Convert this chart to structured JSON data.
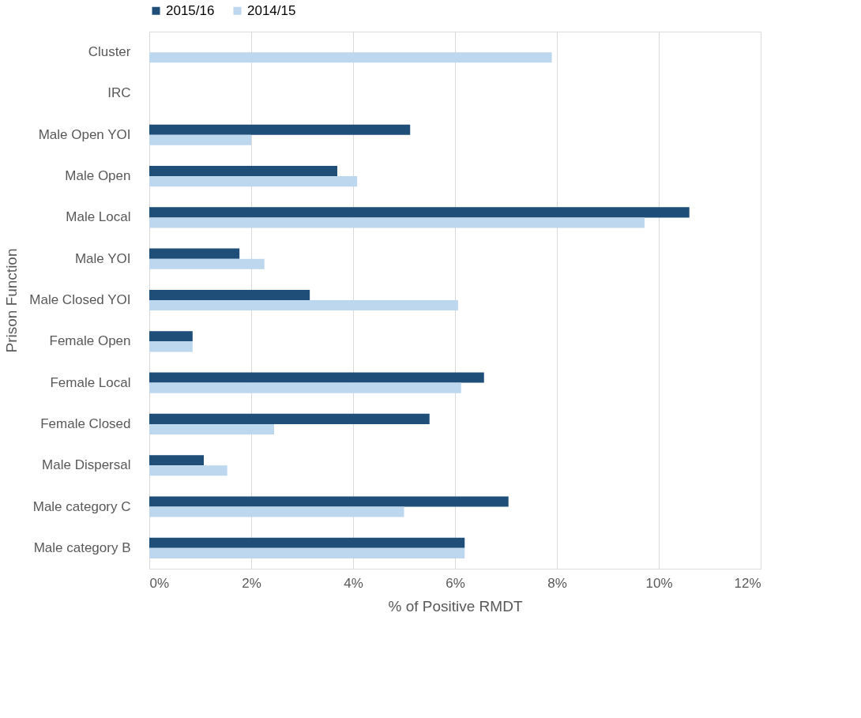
{
  "chart_data": {
    "type": "bar",
    "orientation": "horizontal",
    "xlabel": "% of Positive RMDT",
    "ylabel": "Prison Function",
    "categories": [
      "Cluster",
      "IRC",
      "Male Open YOI",
      "Male Open",
      "Male Local",
      "Male YOI",
      "Male Closed YOI",
      "Female Open",
      "Female Local",
      "Female Closed",
      "Male Dispersal",
      "Male category C",
      "Male category B"
    ],
    "series": [
      {
        "name": "2015/16",
        "color": "#1f4e79",
        "values": [
          null,
          null,
          5.12,
          3.69,
          10.6,
          1.77,
          3.15,
          0.85,
          6.57,
          5.5,
          1.07,
          7.05,
          6.19
        ]
      },
      {
        "name": "2014/15",
        "color": "#bdd7ee",
        "values": [
          7.9,
          null,
          2.0,
          4.08,
          9.72,
          2.26,
          6.06,
          0.85,
          6.12,
          2.45,
          1.53,
          5.0,
          6.19
        ]
      }
    ],
    "xlim": [
      0,
      12
    ],
    "xticks": [
      {
        "value": 0,
        "label": "0%"
      },
      {
        "value": 2,
        "label": "2%"
      },
      {
        "value": 4,
        "label": "4%"
      },
      {
        "value": 6,
        "label": "6%"
      },
      {
        "value": 8,
        "label": "8%"
      },
      {
        "value": 10,
        "label": "10%"
      },
      {
        "value": 12,
        "label": "12%"
      }
    ],
    "grid": "x",
    "legend": "top"
  }
}
